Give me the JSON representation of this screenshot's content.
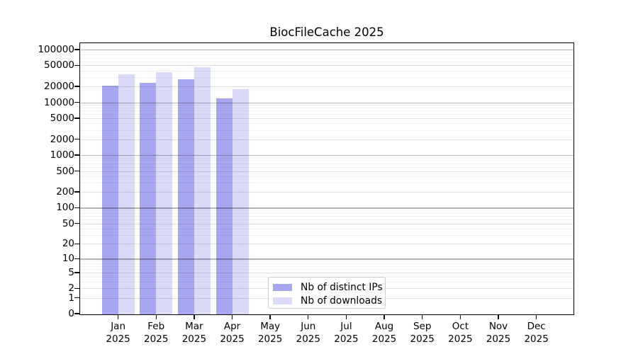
{
  "title": "BiocFileCache 2025",
  "chart_data": {
    "type": "bar",
    "title": "BiocFileCache 2025",
    "scale": "log1p",
    "grid": "horizontal",
    "legend_position": "bottom-center",
    "year": "2025",
    "categories": [
      "Jan",
      "Feb",
      "Mar",
      "Apr",
      "May",
      "Jun",
      "Jul",
      "Aug",
      "Sep",
      "Oct",
      "Nov",
      "Dec"
    ],
    "series": [
      {
        "name": "Nb of distinct IPs",
        "color": "#a6a6f1",
        "values": [
          20600,
          23200,
          27000,
          11900,
          null,
          null,
          null,
          null,
          null,
          null,
          null,
          null
        ]
      },
      {
        "name": "Nb of downloads",
        "color": "#dadaf8",
        "values": [
          34200,
          37500,
          46500,
          17900,
          null,
          null,
          null,
          null,
          null,
          null,
          null,
          null
        ]
      }
    ],
    "y_ticks": [
      0,
      1,
      2,
      5,
      10,
      20,
      50,
      100,
      200,
      500,
      1000,
      2000,
      5000,
      10000,
      20000,
      50000,
      100000
    ],
    "ylim": [
      0,
      100000
    ],
    "xlabel": "",
    "ylabel": ""
  }
}
